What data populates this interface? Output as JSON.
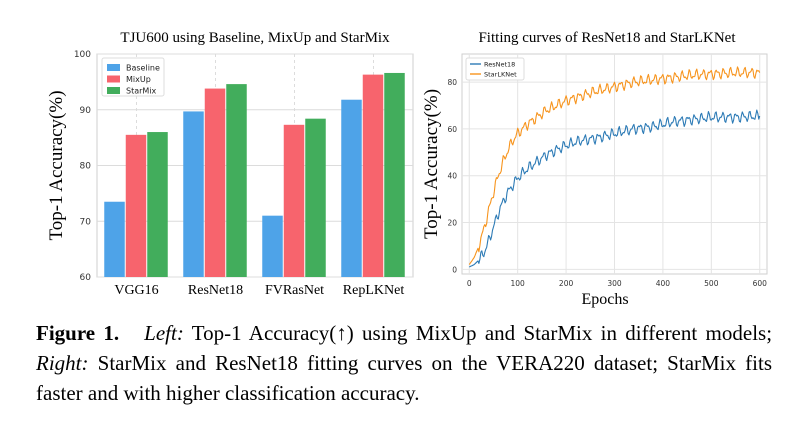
{
  "chart_data": [
    {
      "type": "bar",
      "title": "TJU600 using Baseline, MixUp and StarMix",
      "xlabel": "",
      "ylabel": "Top-1 Accuracy(%)",
      "ylim": [
        60,
        100
      ],
      "yticks": [
        60,
        70,
        80,
        90,
        100
      ],
      "categories": [
        "VGG16",
        "ResNet18",
        "FVRasNet",
        "RepLKNet"
      ],
      "legend_position": "upper-left",
      "grid": true,
      "series": [
        {
          "name": "Baseline",
          "color": "#4ea3e8",
          "values": [
            73.5,
            89.7,
            71.0,
            91.8
          ]
        },
        {
          "name": "MixUp",
          "color": "#f7646d",
          "values": [
            85.5,
            93.8,
            87.3,
            96.3
          ]
        },
        {
          "name": "StarMix",
          "color": "#42ad5c",
          "values": [
            86.0,
            94.6,
            88.4,
            96.6
          ]
        }
      ]
    },
    {
      "type": "line",
      "title": "Fitting curves of  ResNet18 and StarLKNet",
      "xlabel": "Epochs",
      "ylabel": "Top-1 Accuracy(%)",
      "xlim": [
        -15,
        615
      ],
      "ylim": [
        -2,
        92
      ],
      "xticks": [
        0,
        100,
        200,
        300,
        400,
        500,
        600
      ],
      "yticks": [
        0,
        20,
        40,
        60,
        80
      ],
      "legend_position": "upper-left",
      "grid": true,
      "series": [
        {
          "name": "ResNet18",
          "color": "#2d7bb6",
          "x": [
            0,
            10,
            20,
            30,
            40,
            50,
            60,
            70,
            80,
            90,
            100,
            120,
            140,
            160,
            180,
            200,
            230,
            260,
            300,
            340,
            380,
            420,
            460,
            500,
            550,
            600
          ],
          "y": [
            1,
            2,
            4,
            7,
            12,
            18,
            24,
            29,
            33,
            36,
            39,
            43,
            46,
            49,
            51,
            53,
            55,
            56,
            58,
            60,
            61,
            63,
            64,
            65,
            65,
            65.5
          ]
        },
        {
          "name": "StarLKNet",
          "color": "#f7941d",
          "x": [
            0,
            10,
            20,
            30,
            40,
            50,
            60,
            70,
            80,
            90,
            100,
            120,
            140,
            160,
            180,
            200,
            230,
            260,
            300,
            340,
            380,
            420,
            460,
            500,
            550,
            600
          ],
          "y": [
            2,
            5,
            10,
            17,
            25,
            33,
            40,
            46,
            51,
            55,
            58,
            62,
            65,
            68,
            70,
            72,
            74,
            76,
            78,
            80,
            81,
            82,
            83,
            83.5,
            84,
            84
          ]
        }
      ]
    }
  ],
  "caption": {
    "label": "Figure 1.",
    "left_tag": "Left:",
    "left_text": "Top-1 Accuracy(↑) using MixUp and StarMix in different models;",
    "right_tag": "Right:",
    "right_text": "StarMix and ResNet18 fitting curves on the VERA220 dataset; StarMix fits faster and with higher classification accuracy."
  }
}
